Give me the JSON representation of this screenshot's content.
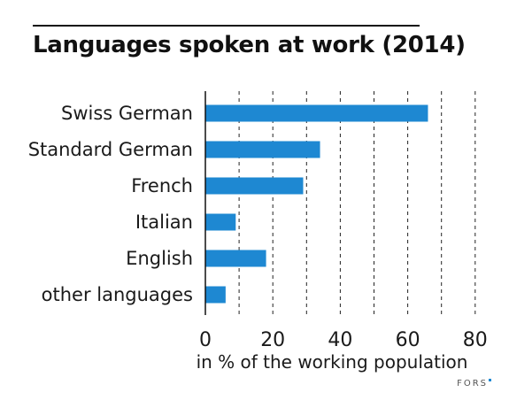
{
  "title": "Languages spoken at work (2014)",
  "chart_data": {
    "type": "bar",
    "orientation": "horizontal",
    "categories": [
      "Swiss German",
      "Standard German",
      "French",
      "Italian",
      "English",
      "other languages"
    ],
    "values": [
      66,
      34,
      29,
      9,
      18,
      6
    ],
    "xlabel": "in % of the working population",
    "xlim": [
      0,
      80
    ],
    "xticks": [
      0,
      20,
      40,
      60,
      80
    ],
    "grid": true,
    "bar_color": "#1e88d2"
  },
  "brand": "FORS"
}
